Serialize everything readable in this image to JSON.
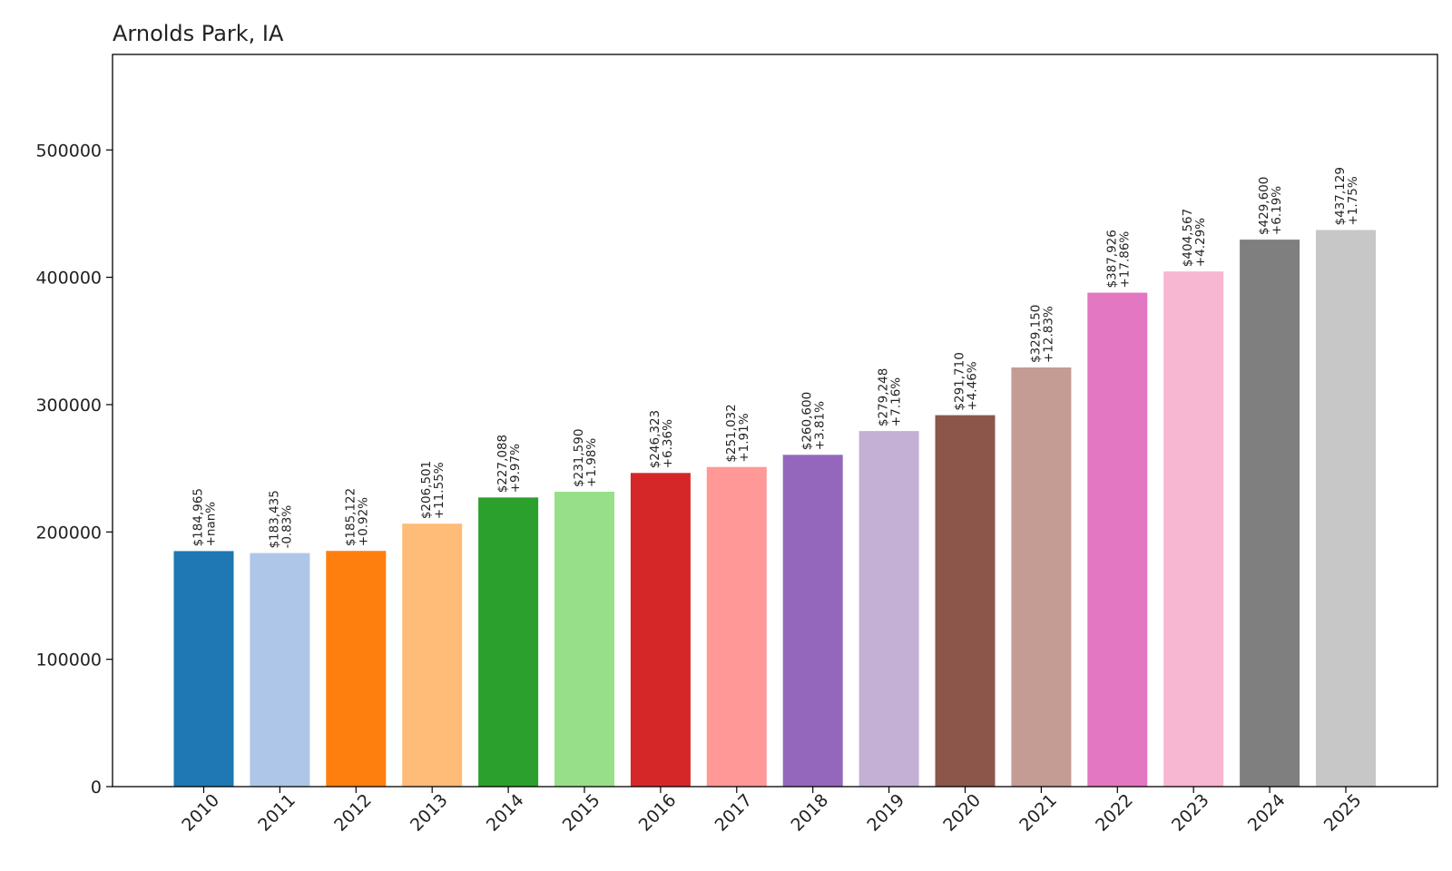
{
  "chart_data": {
    "type": "bar",
    "title": "Arnolds Park, IA",
    "xlabel": "",
    "ylabel": "",
    "ylim": [
      0,
      575000
    ],
    "yticks": [
      "0",
      "100000",
      "200000",
      "300000",
      "400000",
      "500000"
    ],
    "grid": false,
    "categories": [
      "2010",
      "2011",
      "2012",
      "2013",
      "2014",
      "2015",
      "2016",
      "2017",
      "2018",
      "2019",
      "2020",
      "2021",
      "2022",
      "2023",
      "2024",
      "2025"
    ],
    "values": [
      184965,
      183435,
      185122,
      206501,
      227088,
      231590,
      246323,
      251032,
      260600,
      279248,
      291710,
      329150,
      387926,
      404567,
      429600,
      437129
    ],
    "value_labels": [
      "$184,965",
      "$183,435",
      "$185,122",
      "$206,501",
      "$227,088",
      "$231,590",
      "$246,323",
      "$251,032",
      "$260,600",
      "$279,248",
      "$291,710",
      "$329,150",
      "$387,926",
      "$404,567",
      "$429,600",
      "$437,129"
    ],
    "change_labels": [
      "+nan%",
      "-0.83%",
      "+0.92%",
      "+11.55%",
      "+9.97%",
      "+1.98%",
      "+6.36%",
      "+1.91%",
      "+3.81%",
      "+7.16%",
      "+4.46%",
      "+12.83%",
      "+17.86%",
      "+4.29%",
      "+6.19%",
      "+1.75%"
    ],
    "colors": [
      "#1f77b4",
      "#aec7e8",
      "#ff7f0e",
      "#ffbb78",
      "#2ca02c",
      "#98df8a",
      "#d62728",
      "#ff9896",
      "#9467bd",
      "#c5b0d5",
      "#8c564b",
      "#c49c94",
      "#e377c2",
      "#f7b6d2",
      "#7f7f7f",
      "#c7c7c7"
    ]
  }
}
